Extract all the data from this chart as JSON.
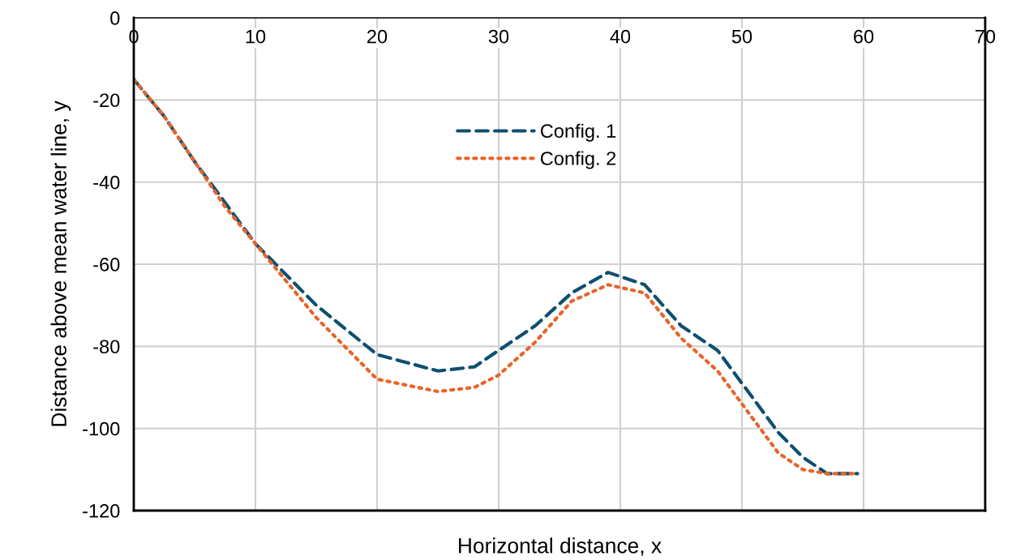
{
  "chart_data": {
    "type": "line",
    "xlabel": "Horizontal distance, x",
    "ylabel": "Distance above mean water line, y",
    "xlim": [
      0,
      70
    ],
    "xticks": [
      0,
      10,
      20,
      30,
      40,
      50,
      60,
      70
    ],
    "ylim": [
      -120,
      0
    ],
    "yticks": [
      -120,
      -100,
      -80,
      -60,
      -40,
      -20,
      0
    ],
    "grid": true,
    "legend": "center",
    "marker": "none",
    "series": [
      {
        "name": "Config. 1",
        "color": "#0e4f70",
        "line_style": "dashed",
        "x": [
          0,
          2.5,
          5,
          7.5,
          10,
          15,
          20,
          25,
          28,
          30,
          33,
          36,
          39,
          42,
          45,
          48,
          50,
          53,
          55,
          57,
          59.5
        ],
        "values": [
          -15,
          -24,
          -35,
          -45,
          -55,
          -70,
          -82,
          -86,
          -85,
          -81,
          -75,
          -67,
          -62,
          -65,
          -75,
          -81,
          -89,
          -101,
          -107,
          -111,
          -111
        ]
      },
      {
        "name": "Config. 2",
        "color": "#e8642a",
        "line_style": "dotted",
        "x": [
          0,
          2.5,
          5,
          7.5,
          10,
          15,
          20,
          25,
          28,
          30,
          33,
          36,
          39,
          42,
          45,
          48,
          50,
          53,
          55,
          57,
          59.5
        ],
        "values": [
          -15,
          -24,
          -35,
          -46,
          -55,
          -73,
          -88,
          -91,
          -90,
          -87,
          -79,
          -69,
          -65,
          -67,
          -78,
          -86,
          -94,
          -106,
          -110,
          -111,
          -111
        ]
      }
    ]
  }
}
